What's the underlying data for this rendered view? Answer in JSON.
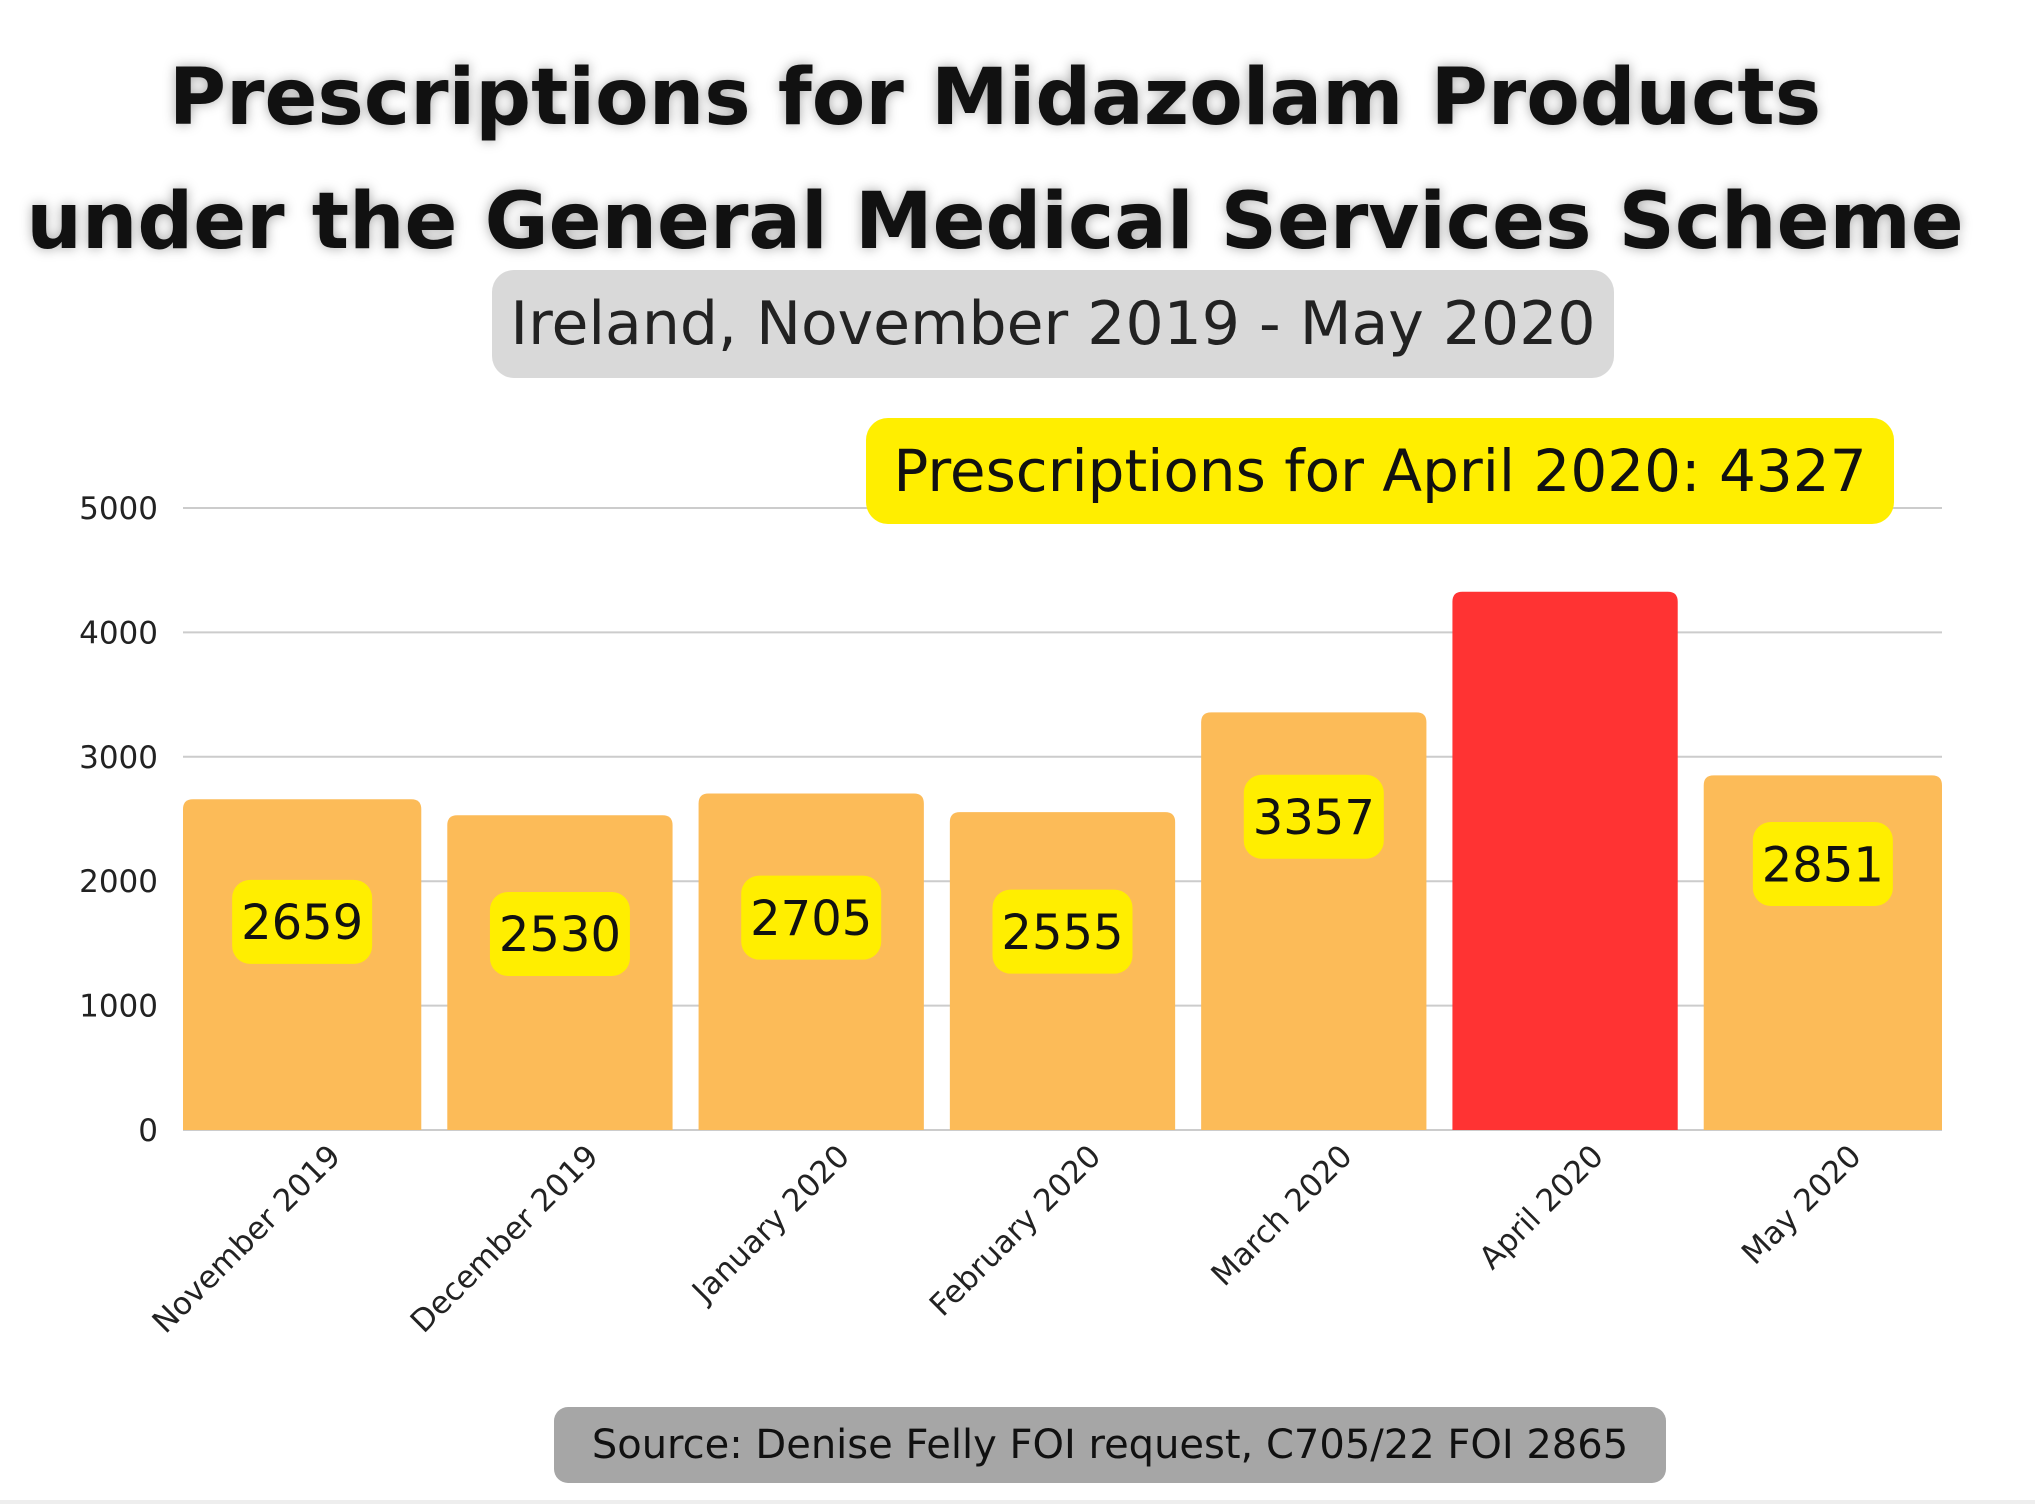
{
  "header": {
    "title_line1": "Prescriptions for Midazolam Products",
    "title_line2": "under the General Medical Services Scheme",
    "subtitle": "Ireland, November 2019 - May 2020"
  },
  "callout": "Prescriptions for April 2020: 4327",
  "source": "Source: Denise Felly FOI request,  C705/22 FOI 2865",
  "colors": {
    "bar": "#fcbb58",
    "highlight_bar": "#ff3333",
    "label_bg": "#ffee00",
    "grid": "#cccccc"
  },
  "chart_data": {
    "type": "bar",
    "title": "Prescriptions for Midazolam Products under the General Medical Services Scheme",
    "subtitle": "Ireland, November 2019 - May 2020",
    "categories": [
      "November 2019",
      "December 2019",
      "January 2020",
      "February 2020",
      "March 2020",
      "April 2020",
      "May 2020"
    ],
    "values": [
      2659,
      2530,
      2705,
      2555,
      3357,
      4327,
      2851
    ],
    "data_labels": [
      "2659",
      "2530",
      "2705",
      "2555",
      "3357",
      "",
      "2851"
    ],
    "highlight": "April 2020",
    "ylim": [
      0,
      5000
    ],
    "yticks": [
      0,
      1000,
      2000,
      3000,
      4000,
      5000
    ],
    "grid": true,
    "legend": "none",
    "xlabel": "",
    "ylabel": ""
  }
}
